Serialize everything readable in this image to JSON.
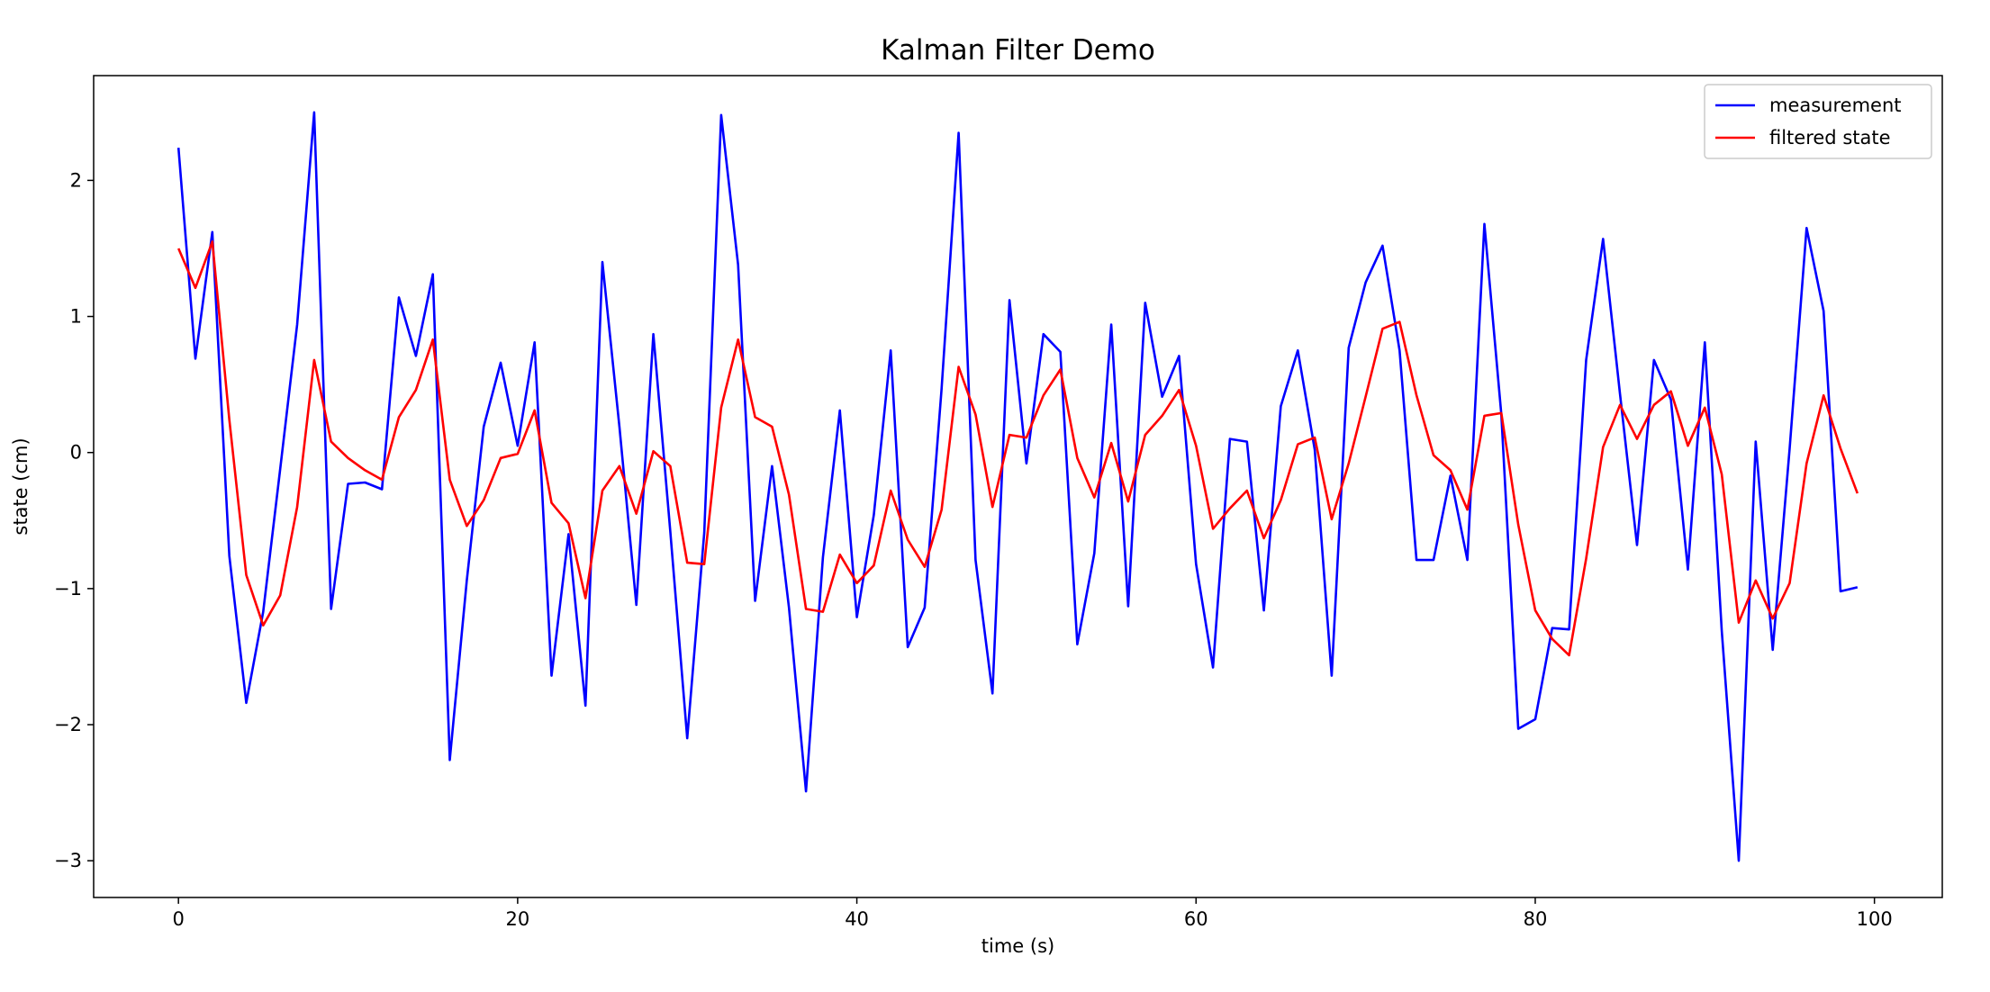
{
  "chart_data": {
    "type": "line",
    "title": "Kalman Filter Demo",
    "xlabel": "time (s)",
    "ylabel": "state  (cm)",
    "xlim": [
      -5,
      104
    ],
    "ylim": [
      -3.27,
      2.77
    ],
    "xticks": [
      0,
      20,
      40,
      60,
      80,
      100
    ],
    "yticks": [
      -3,
      -2,
      -1,
      0,
      1,
      2
    ],
    "grid": false,
    "legend_position": "top-right",
    "x": [
      0,
      1,
      2,
      3,
      4,
      5,
      6,
      7,
      8,
      9,
      10,
      11,
      12,
      13,
      14,
      15,
      16,
      17,
      18,
      19,
      20,
      21,
      22,
      23,
      24,
      25,
      26,
      27,
      28,
      29,
      30,
      31,
      32,
      33,
      34,
      35,
      36,
      37,
      38,
      39,
      40,
      41,
      42,
      43,
      44,
      45,
      46,
      47,
      48,
      49,
      50,
      51,
      52,
      53,
      54,
      55,
      56,
      57,
      58,
      59,
      60,
      61,
      62,
      63,
      64,
      65,
      66,
      67,
      68,
      69,
      70,
      71,
      72,
      73,
      74,
      75,
      76,
      77,
      78,
      79,
      80,
      81,
      82,
      83,
      84,
      85,
      86,
      87,
      88,
      89,
      90,
      91,
      92,
      93,
      94,
      95,
      96,
      97,
      98,
      99
    ],
    "series": [
      {
        "name": "measurement",
        "color": "#0000ff",
        "values": [
          2.24,
          0.69,
          1.62,
          -0.76,
          -1.84,
          -1.17,
          -0.12,
          0.94,
          2.5,
          -1.15,
          -0.23,
          -0.22,
          -0.27,
          1.14,
          0.71,
          1.31,
          -2.26,
          -0.94,
          0.19,
          0.66,
          0.05,
          0.81,
          -1.64,
          -0.6,
          -1.86,
          1.4,
          0.19,
          -1.12,
          0.87,
          -0.58,
          -2.1,
          -0.59,
          2.48,
          1.38,
          -1.09,
          -0.1,
          -1.14,
          -2.49,
          -0.77,
          0.31,
          -1.21,
          -0.46,
          0.75,
          -1.43,
          -1.14,
          0.47,
          2.35,
          -0.79,
          -1.77,
          1.12,
          -0.08,
          0.87,
          0.74,
          -1.41,
          -0.74,
          0.94,
          -1.13,
          1.1,
          0.41,
          0.71,
          -0.82,
          -1.58,
          0.1,
          0.08,
          -1.16,
          0.34,
          0.75,
          0.02,
          -1.64,
          0.77,
          1.25,
          1.52,
          0.75,
          -0.79,
          -0.79,
          -0.17,
          -0.79,
          1.68,
          0.28,
          -2.03,
          -1.96,
          -1.29,
          -1.3,
          0.68,
          1.57,
          0.43,
          -0.68,
          0.68,
          0.39,
          -0.86,
          0.81,
          -1.31,
          -3.0,
          0.08,
          -1.45,
          0.03,
          1.65,
          1.04,
          -1.02,
          -0.99
        ]
      },
      {
        "name": "filtered state",
        "color": "#ff0000",
        "values": [
          1.5,
          1.21,
          1.55,
          0.24,
          -0.9,
          -1.27,
          -1.05,
          -0.4,
          0.68,
          0.08,
          -0.04,
          -0.13,
          -0.2,
          0.26,
          0.46,
          0.83,
          -0.2,
          -0.54,
          -0.35,
          -0.04,
          -0.01,
          0.31,
          -0.37,
          -0.52,
          -1.07,
          -0.28,
          -0.1,
          -0.45,
          0.01,
          -0.1,
          -0.81,
          -0.82,
          0.33,
          0.83,
          0.26,
          0.19,
          -0.31,
          -1.15,
          -1.17,
          -0.75,
          -0.96,
          -0.83,
          -0.28,
          -0.64,
          -0.84,
          -0.42,
          0.63,
          0.28,
          -0.4,
          0.13,
          0.11,
          0.42,
          0.61,
          -0.04,
          -0.33,
          0.07,
          -0.36,
          0.13,
          0.27,
          0.46,
          0.05,
          -0.56,
          -0.41,
          -0.28,
          -0.63,
          -0.35,
          0.06,
          0.11,
          -0.49,
          -0.08,
          0.41,
          0.91,
          0.96,
          0.42,
          -0.02,
          -0.13,
          -0.42,
          0.27,
          0.29,
          -0.53,
          -1.16,
          -1.37,
          -1.49,
          -0.78,
          0.04,
          0.35,
          0.1,
          0.35,
          0.45,
          0.05,
          0.33,
          -0.16,
          -1.25,
          -0.94,
          -1.22,
          -0.96,
          -0.08,
          0.42,
          0.03,
          -0.3
        ]
      }
    ]
  }
}
